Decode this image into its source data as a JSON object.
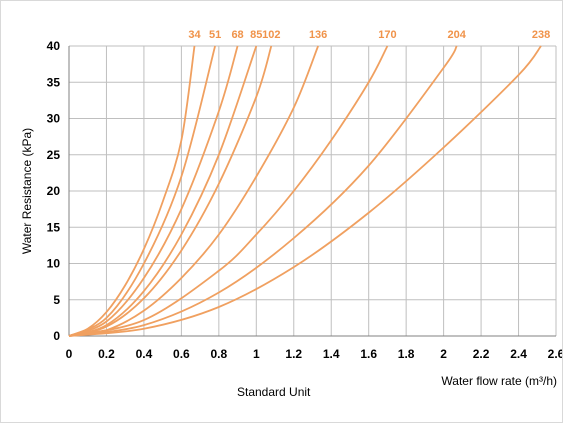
{
  "chart_data": {
    "type": "line",
    "xlabel": "Water flow rate (m³/h)",
    "ylabel": "Water Resistance (kPa)",
    "xlim": [
      0,
      2.6
    ],
    "ylim": [
      0,
      40
    ],
    "x_ticks": [
      "0",
      "0.2",
      "0.4",
      "0.6",
      "0.8",
      "1",
      "1.2",
      "1.4",
      "1.6",
      "1.8",
      "2",
      "2.2",
      "2.4",
      "2.6"
    ],
    "y_ticks": [
      "0",
      "5",
      "10",
      "15",
      "20",
      "25",
      "30",
      "35",
      "40"
    ],
    "grid": true,
    "line_color": "#f0a060",
    "label_color": "#f0934a",
    "series": [
      {
        "name": "34",
        "x": [
          0,
          0.1,
          0.2,
          0.3,
          0.4,
          0.5,
          0.6,
          0.67
        ],
        "y": [
          0,
          1,
          3.3,
          7,
          12,
          18.5,
          27,
          40
        ]
      },
      {
        "name": "51",
        "x": [
          0,
          0.2,
          0.4,
          0.6,
          0.78
        ],
        "y": [
          0,
          2.5,
          10,
          22,
          40
        ]
      },
      {
        "name": "68",
        "x": [
          0,
          0.2,
          0.4,
          0.6,
          0.8,
          0.9
        ],
        "y": [
          0,
          2,
          8,
          17.5,
          31,
          40
        ]
      },
      {
        "name": "85",
        "x": [
          0,
          0.2,
          0.4,
          0.6,
          0.8,
          1.0
        ],
        "y": [
          0,
          1.5,
          6.2,
          14,
          25,
          40
        ]
      },
      {
        "name": "102",
        "x": [
          0,
          0.2,
          0.4,
          0.6,
          0.8,
          1.0,
          1.08
        ],
        "y": [
          0,
          1.3,
          5.2,
          11.8,
          21,
          33,
          40
        ]
      },
      {
        "name": "136",
        "x": [
          0,
          0.2,
          0.4,
          0.6,
          0.8,
          1.0,
          1.2,
          1.33
        ],
        "y": [
          0,
          0.8,
          3.5,
          8,
          14,
          22,
          31.5,
          40
        ]
      },
      {
        "name": "170",
        "x": [
          0,
          0.4,
          0.8,
          1.0,
          1.2,
          1.4,
          1.6,
          1.7
        ],
        "y": [
          0,
          2.2,
          9,
          14,
          20,
          27,
          35,
          40
        ]
      },
      {
        "name": "204",
        "x": [
          0,
          0.4,
          0.8,
          1.2,
          1.6,
          2.0,
          2.07
        ],
        "y": [
          0,
          1.5,
          6,
          13.5,
          23.5,
          37,
          40
        ]
      },
      {
        "name": "238",
        "x": [
          0,
          0.4,
          0.8,
          1.2,
          1.6,
          2.0,
          2.4,
          2.52
        ],
        "y": [
          0,
          1,
          4,
          9.5,
          17,
          26,
          36,
          40
        ]
      }
    ]
  },
  "caption": "Standard Unit"
}
